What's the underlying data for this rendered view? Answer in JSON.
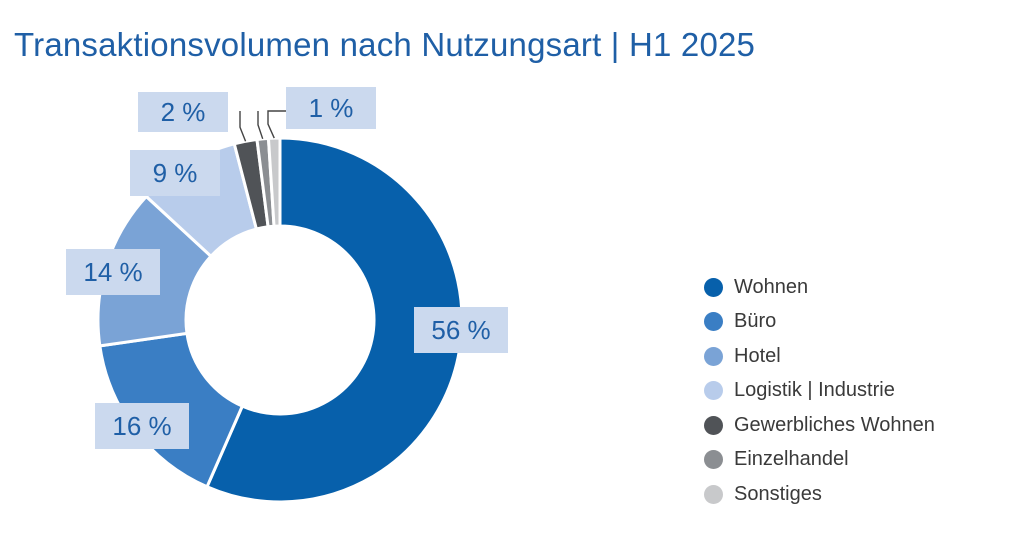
{
  "chart_data": {
    "type": "pie",
    "title": "Transaktionsvolumen nach Nutzungsart | H1 2025",
    "categories": [
      "Wohnen",
      "Büro",
      "Hotel",
      "Logistik | Industrie",
      "Gewerbliches Wohnen",
      "Einzelhandel",
      "Sonstiges"
    ],
    "values": [
      56,
      16,
      14,
      9,
      2,
      1,
      1
    ],
    "value_labels": [
      "56 %",
      "16 %",
      "14 %",
      "9 %",
      "2 %",
      "",
      "1 %"
    ],
    "unit": "%",
    "colors": [
      "#0760ab",
      "#3a7ec4",
      "#7aa3d6",
      "#b8cceb",
      "#505357",
      "#8b8e92",
      "#c8c9cb"
    ],
    "donut": true,
    "legend_position": "right"
  }
}
